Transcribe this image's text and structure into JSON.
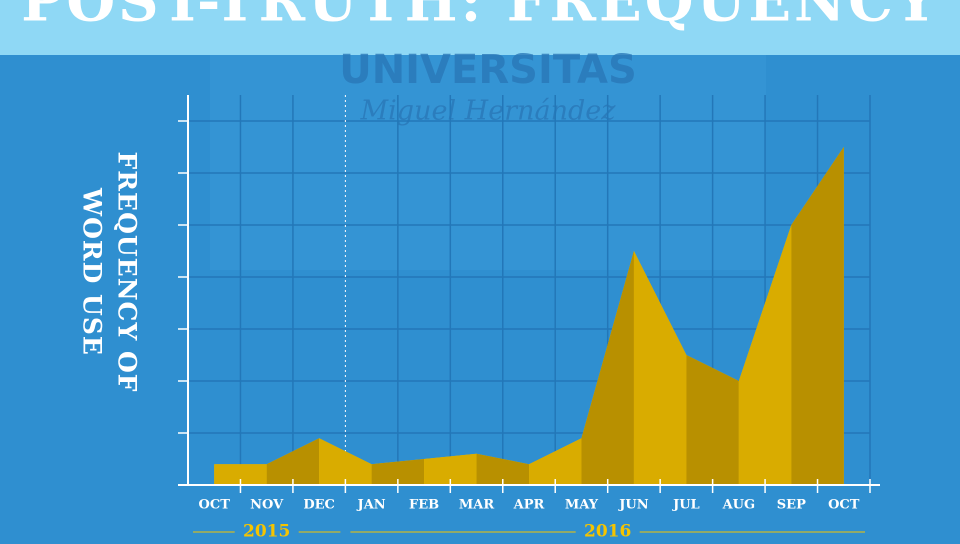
{
  "chart_data": {
    "type": "area",
    "title": "POST-TRUTH: FREQUENCY",
    "ylabel_lines": [
      "FREQUENCY OF",
      "WORD USE"
    ],
    "watermark": [
      "UNIVERSITAS",
      "Miguel Hernández"
    ],
    "categories": [
      "OCT",
      "NOV",
      "DEC",
      "JAN",
      "FEB",
      "MAR",
      "APR",
      "MAY",
      "JUN",
      "JUL",
      "AUG",
      "SEP",
      "OCT"
    ],
    "values": [
      0.4,
      0.4,
      0.9,
      0.4,
      0.5,
      0.6,
      0.4,
      0.9,
      4.5,
      2.5,
      2.0,
      5.0,
      6.5
    ],
    "periods": [
      "2015",
      "2016"
    ],
    "colors": [
      "#f5c400",
      "#d9ac00",
      "#b89000"
    ],
    "ylim": [
      0,
      7.5
    ],
    "yticks": [
      1,
      2,
      3,
      4,
      5,
      6,
      7
    ],
    "grid": true
  }
}
